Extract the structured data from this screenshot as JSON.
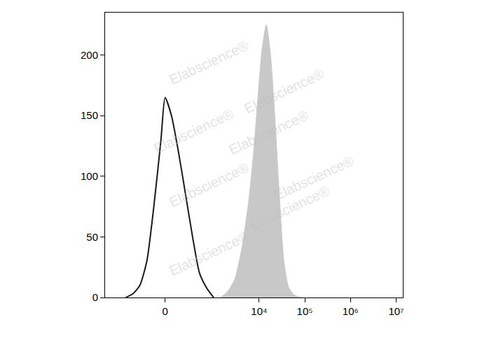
{
  "chart_data": {
    "type": "line",
    "watermark": "Elabscience®",
    "xlim": [
      -1800,
      14000000
    ],
    "xticks": [
      0,
      {
        "value": 10000,
        "label": "10⁴"
      },
      {
        "value": 100000,
        "label": "10⁵"
      },
      {
        "value": 1000000,
        "label": "10⁶"
      },
      {
        "value": 10000000,
        "label": "10⁷"
      }
    ],
    "ylim": [
      0,
      235
    ],
    "yticks": [
      0,
      50,
      100,
      150,
      200
    ],
    "grid": false,
    "series": [
      {
        "type": "line",
        "color": "#1a1a1a",
        "x": [
          -625,
          -429,
          -289,
          -185,
          -105,
          -37,
          0,
          57,
          127,
          214,
          327,
          481,
          697,
          1001
        ],
        "values": [
          0,
          3,
          10,
          30,
          75,
          130,
          165,
          150,
          120,
          85,
          50,
          20,
          8,
          0
        ]
      },
      {
        "type": "area",
        "color": "#c8c8c8",
        "x": [
          1430,
          2046,
          2917,
          4159,
          5929,
          7586,
          9397,
          11612,
          14359,
          17780,
          21980,
          27170,
          34834,
          44669,
          59290,
          84525
        ],
        "values": [
          0,
          5,
          15,
          40,
          80,
          120,
          165,
          205,
          225,
          200,
          150,
          90,
          30,
          8,
          2,
          0
        ]
      }
    ]
  }
}
